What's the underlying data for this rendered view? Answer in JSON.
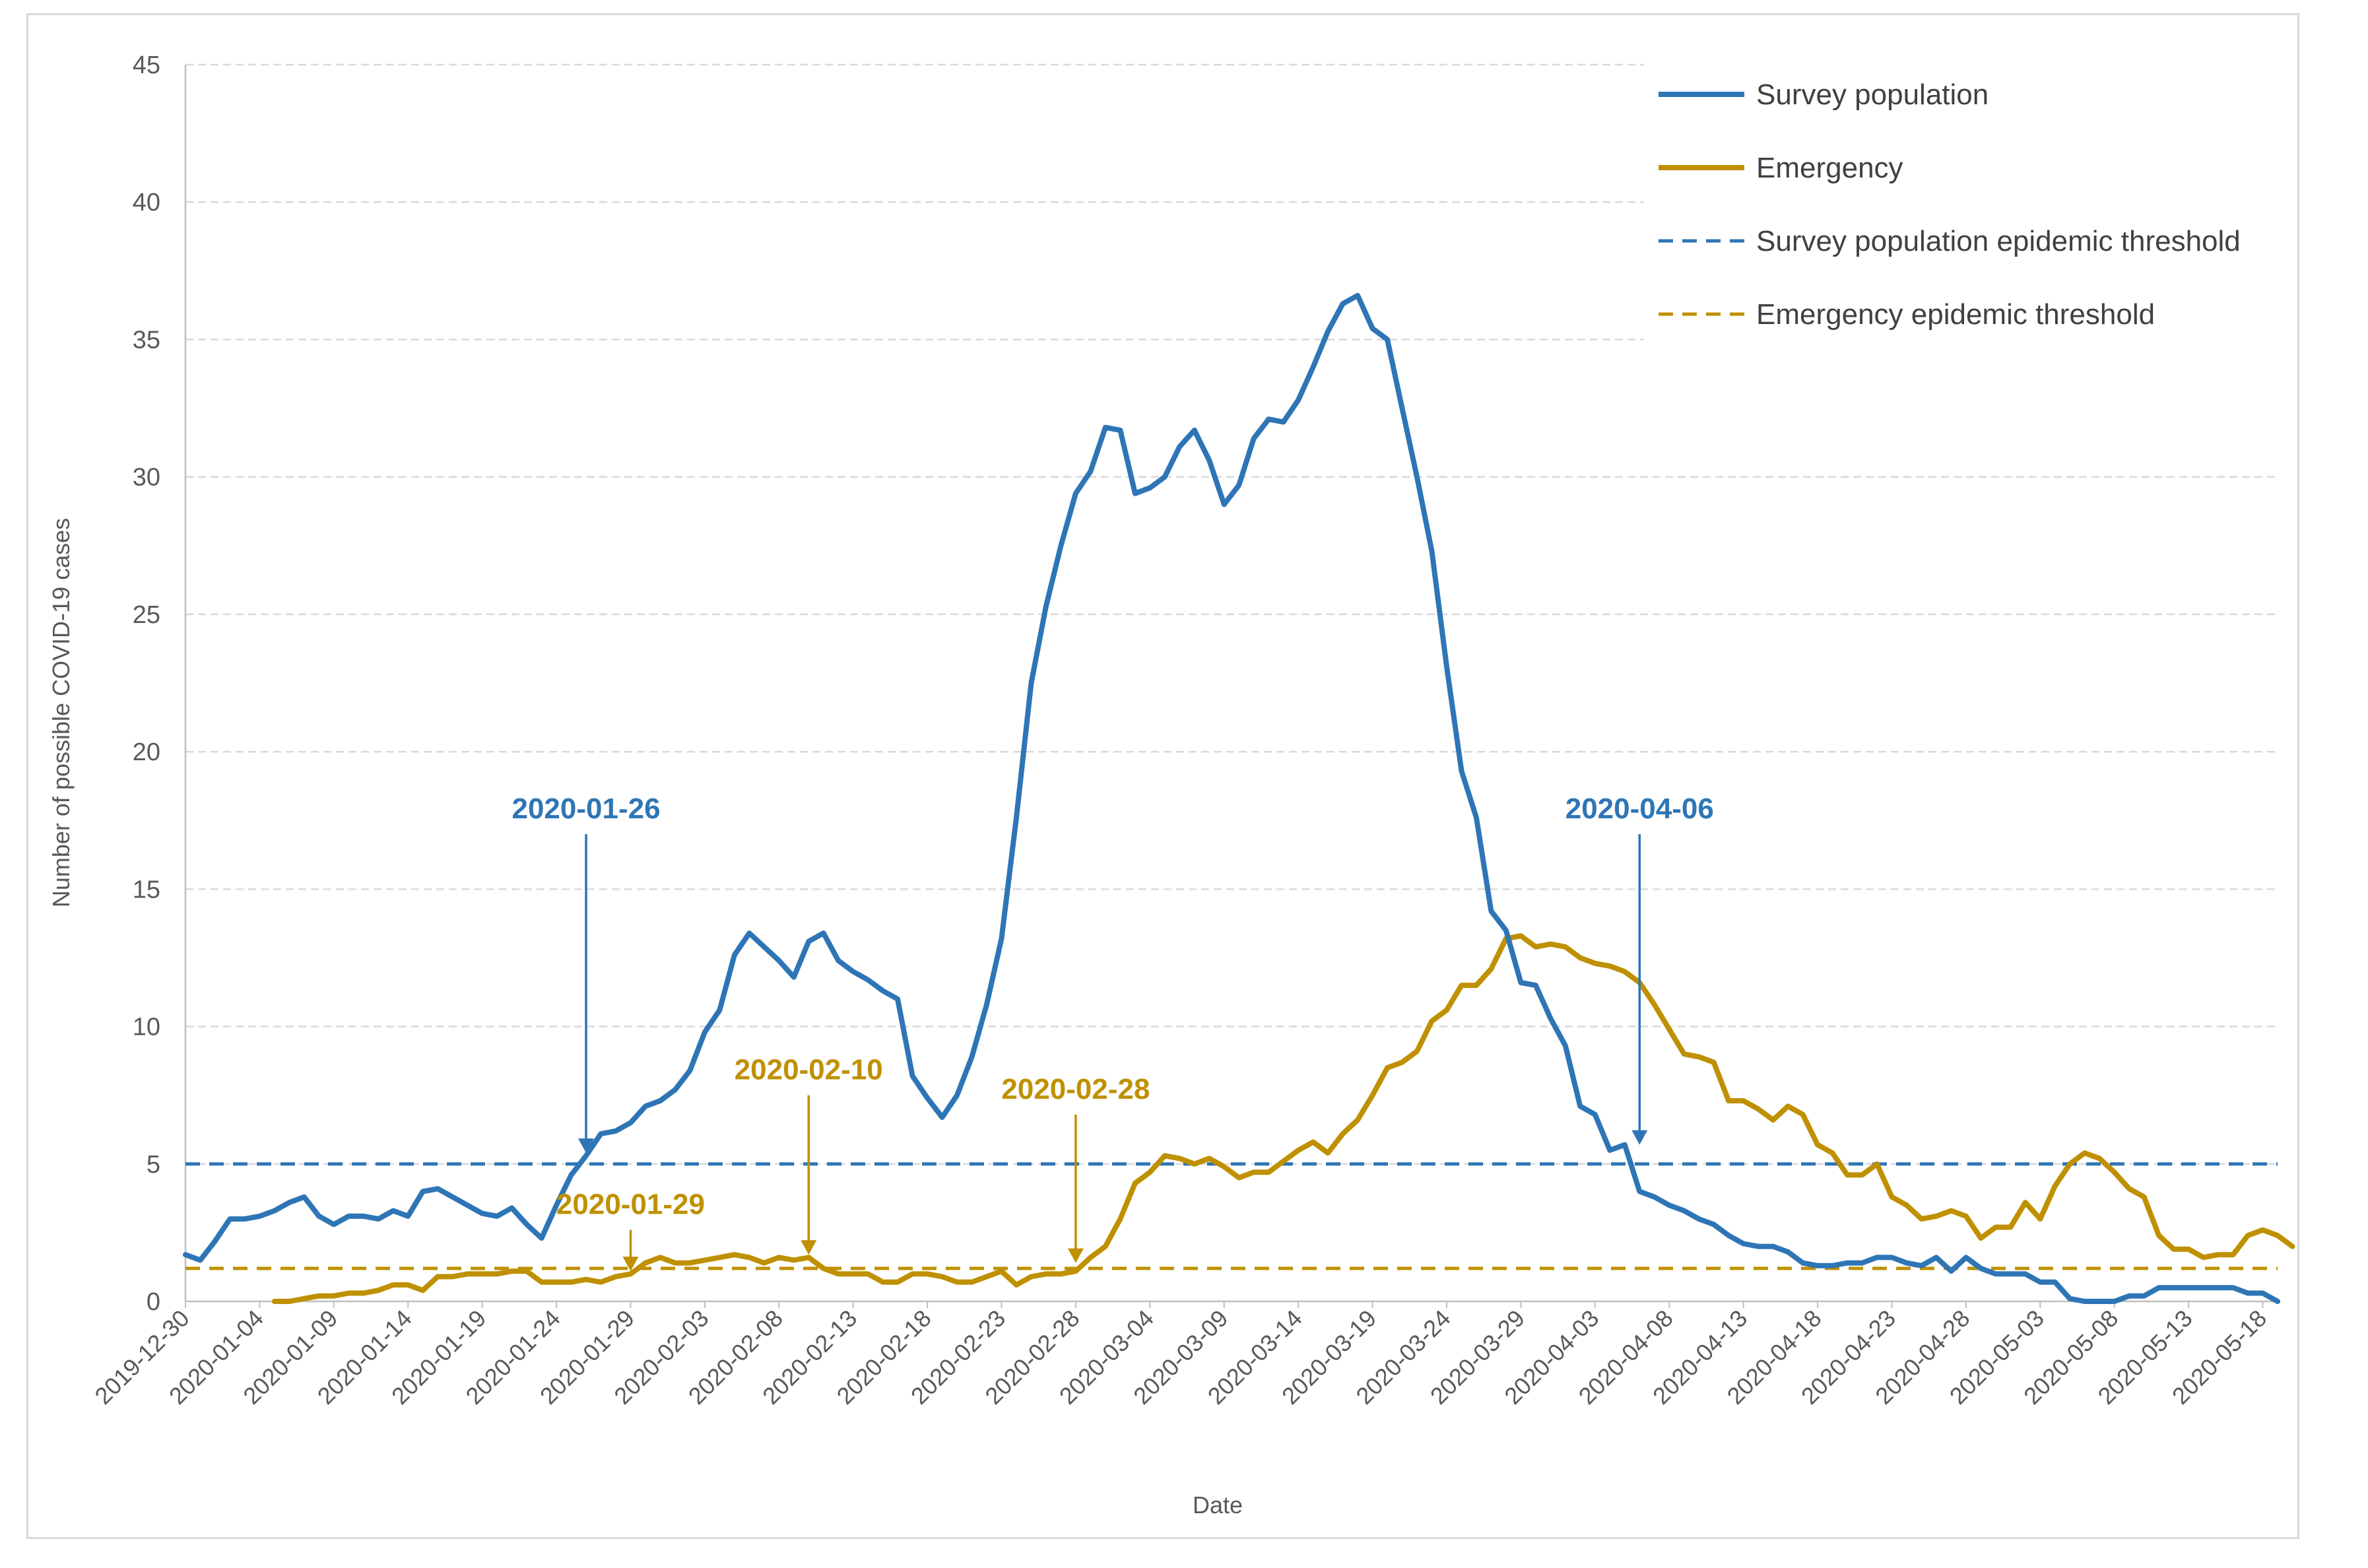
{
  "chart_data": {
    "type": "line",
    "title": "",
    "xlabel": "Date",
    "ylabel": "Number of possible COVID-19 cases",
    "ylim": [
      0,
      45
    ],
    "y_ticks": [
      0,
      5,
      10,
      15,
      20,
      25,
      30,
      35,
      40,
      45
    ],
    "grid": "horizontal dashed",
    "legend_position": "top-right",
    "x_start": "2019-12-30",
    "x_count": 142,
    "x_tick_labels": [
      "2019-12-30",
      "2020-01-04",
      "2020-01-09",
      "2020-01-14",
      "2020-01-19",
      "2020-01-24",
      "2020-01-29",
      "2020-02-03",
      "2020-02-08",
      "2020-02-13",
      "2020-02-18",
      "2020-02-23",
      "2020-02-28",
      "2020-03-04",
      "2020-03-09",
      "2020-03-14",
      "2020-03-19",
      "2020-03-24",
      "2020-03-29",
      "2020-04-03",
      "2020-04-08",
      "2020-04-13",
      "2020-04-18",
      "2020-04-23",
      "2020-04-28",
      "2020-05-03",
      "2020-05-08",
      "2020-05-13",
      "2020-05-18"
    ],
    "x_tick_step_days": 5,
    "series": [
      {
        "name": "Survey population",
        "color": "#2e75b6",
        "style": "solid",
        "start_index": 0,
        "values": [
          1.7,
          1.5,
          2.2,
          3.0,
          3.0,
          3.1,
          3.3,
          3.6,
          3.8,
          3.1,
          2.8,
          3.1,
          3.1,
          3.0,
          3.3,
          3.1,
          4.0,
          4.1,
          3.8,
          3.5,
          3.2,
          3.1,
          3.4,
          2.8,
          2.3,
          3.5,
          4.6,
          5.3,
          6.1,
          6.2,
          6.5,
          7.1,
          7.3,
          7.7,
          8.4,
          9.8,
          10.6,
          12.6,
          13.4,
          12.9,
          12.4,
          11.8,
          13.1,
          13.4,
          12.4,
          12.0,
          11.7,
          11.3,
          11.0,
          8.2,
          7.4,
          6.7,
          7.5,
          8.9,
          10.8,
          13.2,
          17.6,
          22.5,
          25.3,
          27.5,
          29.4,
          30.2,
          31.8,
          31.7,
          29.4,
          29.6,
          30.0,
          31.1,
          31.7,
          30.6,
          29.0,
          29.7,
          31.4,
          32.1,
          32.0,
          32.8,
          34.0,
          35.3,
          36.3,
          36.6,
          35.4,
          35.0,
          32.5,
          30.0,
          27.3,
          23.1,
          19.3,
          17.6,
          14.2,
          13.5,
          11.6,
          11.5,
          10.3,
          9.3,
          7.1,
          6.8,
          5.5,
          5.7,
          4.0,
          3.8,
          3.5,
          3.3,
          3.0,
          2.8,
          2.4,
          2.1,
          2.0,
          2.0,
          1.8,
          1.4,
          1.3,
          1.3,
          1.4,
          1.4,
          1.6,
          1.6,
          1.4,
          1.3,
          1.6,
          1.1,
          1.6,
          1.2,
          1.0,
          1.0,
          1.0,
          0.7,
          0.7,
          0.1,
          0.0,
          0.0,
          0.0,
          0.2,
          0.2,
          0.5,
          0.5,
          0.5,
          0.5,
          0.5,
          0.5,
          0.3,
          0.3,
          0.0
        ]
      },
      {
        "name": "Emergency",
        "color": "#bf9000",
        "style": "solid",
        "start_index": 6,
        "values": [
          0.0,
          0.0,
          0.1,
          0.2,
          0.2,
          0.3,
          0.3,
          0.4,
          0.6,
          0.6,
          0.4,
          0.9,
          0.9,
          1.0,
          1.0,
          1.0,
          1.1,
          1.1,
          0.7,
          0.7,
          0.7,
          0.8,
          0.7,
          0.9,
          1.0,
          1.4,
          1.6,
          1.4,
          1.4,
          1.5,
          1.6,
          1.7,
          1.6,
          1.4,
          1.6,
          1.5,
          1.6,
          1.2,
          1.0,
          1.0,
          1.0,
          0.7,
          0.7,
          1.0,
          1.0,
          0.9,
          0.7,
          0.7,
          0.9,
          1.1,
          0.6,
          0.9,
          1.0,
          1.0,
          1.1,
          1.6,
          2.0,
          3.0,
          4.3,
          4.7,
          5.3,
          5.2,
          5.0,
          5.2,
          4.9,
          4.5,
          4.7,
          4.7,
          5.1,
          5.5,
          5.8,
          5.4,
          6.1,
          6.6,
          7.5,
          8.5,
          8.7,
          9.1,
          10.2,
          10.6,
          11.5,
          11.5,
          12.1,
          13.2,
          13.3,
          12.9,
          13.0,
          12.9,
          12.5,
          12.3,
          12.2,
          12.0,
          11.6,
          10.8,
          9.9,
          9.0,
          8.9,
          8.7,
          7.3,
          7.3,
          7.0,
          6.6,
          7.1,
          6.8,
          5.7,
          5.4,
          4.6,
          4.6,
          5.0,
          3.8,
          3.5,
          3.0,
          3.1,
          3.3,
          3.1,
          2.3,
          2.7,
          2.7,
          3.6,
          3.0,
          4.2,
          5.0,
          5.4,
          5.2,
          4.7,
          4.1,
          3.8,
          2.4,
          1.9,
          1.9,
          1.6,
          1.7,
          1.7,
          2.4,
          2.6,
          2.4,
          2.0
        ]
      },
      {
        "name": "Survey population epidemic threshold",
        "color": "#2e75b6",
        "style": "dashed",
        "constant": 5.0
      },
      {
        "name": "Emergency epidemic threshold",
        "color": "#bf9000",
        "style": "dashed",
        "constant": 1.2
      }
    ],
    "annotations": [
      {
        "label": "2020-01-26",
        "color": "#2e75b6",
        "x_index": 27,
        "arrow_from_y": 17.0,
        "arrow_to_y": 5.4
      },
      {
        "label": "2020-01-29",
        "color": "#bf9000",
        "x_index": 30,
        "arrow_from_y": 2.6,
        "arrow_to_y": 1.1
      },
      {
        "label": "2020-02-10",
        "color": "#bf9000",
        "x_index": 42,
        "arrow_from_y": 7.5,
        "arrow_to_y": 1.7
      },
      {
        "label": "2020-02-28",
        "color": "#bf9000",
        "x_index": 60,
        "arrow_from_y": 6.8,
        "arrow_to_y": 1.4
      },
      {
        "label": "2020-04-06",
        "color": "#2e75b6",
        "x_index": 98,
        "arrow_from_y": 17.0,
        "arrow_to_y": 5.7
      }
    ]
  }
}
